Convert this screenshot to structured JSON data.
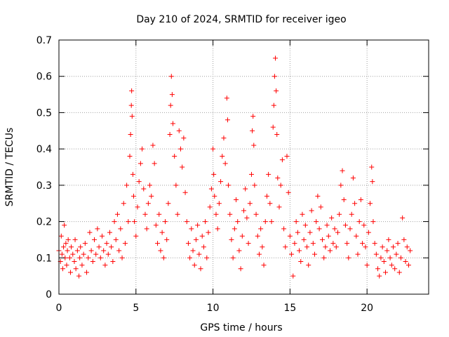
{
  "chart_data": {
    "type": "scatter",
    "title": "Day 210 of 2024, SRMTID for receiver igeo",
    "xlabel": "GPS time / hours",
    "ylabel": "SRMTID / TECUs",
    "xlim": [
      0,
      24
    ],
    "ylim": [
      0,
      0.7
    ],
    "x_ticks": [
      "0",
      "5",
      "10",
      "15",
      "20"
    ],
    "x_tick_values": [
      0,
      5,
      10,
      15,
      20
    ],
    "y_ticks": [
      "0",
      "0.1",
      "0.2",
      "0.3",
      "0.4",
      "0.5",
      "0.6",
      "0.7"
    ],
    "y_tick_values": [
      0,
      0.1,
      0.2,
      0.3,
      0.4,
      0.5,
      0.6,
      0.7
    ],
    "grid": true,
    "marker": "+",
    "marker_color": "#ff0000",
    "series": [
      {
        "name": "SRMTID",
        "points": [
          [
            0.0,
            0.12
          ],
          [
            0.1,
            0.09
          ],
          [
            0.15,
            0.16
          ],
          [
            0.2,
            0.11
          ],
          [
            0.25,
            0.07
          ],
          [
            0.3,
            0.13
          ],
          [
            0.35,
            0.19
          ],
          [
            0.4,
            0.1
          ],
          [
            0.45,
            0.14
          ],
          [
            0.5,
            0.08
          ],
          [
            0.55,
            0.12
          ],
          [
            0.6,
            0.15
          ],
          [
            0.7,
            0.1
          ],
          [
            0.75,
            0.06
          ],
          [
            0.8,
            0.13
          ],
          [
            0.9,
            0.11
          ],
          [
            1.0,
            0.09
          ],
          [
            1.05,
            0.15
          ],
          [
            1.1,
            0.07
          ],
          [
            1.2,
            0.12
          ],
          [
            1.3,
            0.05
          ],
          [
            1.35,
            0.1
          ],
          [
            1.4,
            0.13
          ],
          [
            1.5,
            0.08
          ],
          [
            1.6,
            0.11
          ],
          [
            1.7,
            0.14
          ],
          [
            1.8,
            0.06
          ],
          [
            1.9,
            0.1
          ],
          [
            2.0,
            0.17
          ],
          [
            2.1,
            0.12
          ],
          [
            2.2,
            0.09
          ],
          [
            2.3,
            0.15
          ],
          [
            2.4,
            0.11
          ],
          [
            2.5,
            0.18
          ],
          [
            2.6,
            0.13
          ],
          [
            2.7,
            0.1
          ],
          [
            2.8,
            0.16
          ],
          [
            2.9,
            0.12
          ],
          [
            3.0,
            0.08
          ],
          [
            3.1,
            0.14
          ],
          [
            3.2,
            0.11
          ],
          [
            3.3,
            0.17
          ],
          [
            3.4,
            0.13
          ],
          [
            3.5,
            0.09
          ],
          [
            3.6,
            0.2
          ],
          [
            3.7,
            0.15
          ],
          [
            3.8,
            0.22
          ],
          [
            3.9,
            0.12
          ],
          [
            4.0,
            0.18
          ],
          [
            4.1,
            0.1
          ],
          [
            4.2,
            0.25
          ],
          [
            4.3,
            0.14
          ],
          [
            4.4,
            0.3
          ],
          [
            4.5,
            0.2
          ],
          [
            4.6,
            0.38
          ],
          [
            4.65,
            0.44
          ],
          [
            4.7,
            0.52
          ],
          [
            4.72,
            0.56
          ],
          [
            4.75,
            0.49
          ],
          [
            4.8,
            0.33
          ],
          [
            4.85,
            0.27
          ],
          [
            4.9,
            0.2
          ],
          [
            5.0,
            0.16
          ],
          [
            5.1,
            0.24
          ],
          [
            5.2,
            0.31
          ],
          [
            5.3,
            0.36
          ],
          [
            5.4,
            0.4
          ],
          [
            5.5,
            0.29
          ],
          [
            5.6,
            0.22
          ],
          [
            5.7,
            0.18
          ],
          [
            5.8,
            0.25
          ],
          [
            5.9,
            0.3
          ],
          [
            6.0,
            0.27
          ],
          [
            6.1,
            0.41
          ],
          [
            6.2,
            0.36
          ],
          [
            6.3,
            0.19
          ],
          [
            6.4,
            0.14
          ],
          [
            6.5,
            0.22
          ],
          [
            6.6,
            0.12
          ],
          [
            6.7,
            0.17
          ],
          [
            6.8,
            0.1
          ],
          [
            6.9,
            0.2
          ],
          [
            7.0,
            0.15
          ],
          [
            7.1,
            0.25
          ],
          [
            7.2,
            0.44
          ],
          [
            7.25,
            0.52
          ],
          [
            7.3,
            0.6
          ],
          [
            7.35,
            0.55
          ],
          [
            7.4,
            0.47
          ],
          [
            7.5,
            0.38
          ],
          [
            7.6,
            0.3
          ],
          [
            7.7,
            0.22
          ],
          [
            7.8,
            0.45
          ],
          [
            7.9,
            0.4
          ],
          [
            8.0,
            0.35
          ],
          [
            8.1,
            0.43
          ],
          [
            8.2,
            0.28
          ],
          [
            8.3,
            0.2
          ],
          [
            8.4,
            0.14
          ],
          [
            8.5,
            0.1
          ],
          [
            8.6,
            0.18
          ],
          [
            8.7,
            0.12
          ],
          [
            8.8,
            0.08
          ],
          [
            8.9,
            0.15
          ],
          [
            9.0,
            0.19
          ],
          [
            9.1,
            0.11
          ],
          [
            9.2,
            0.07
          ],
          [
            9.3,
            0.16
          ],
          [
            9.4,
            0.13
          ],
          [
            9.5,
            0.2
          ],
          [
            9.6,
            0.1
          ],
          [
            9.7,
            0.17
          ],
          [
            9.8,
            0.24
          ],
          [
            9.9,
            0.29
          ],
          [
            10.0,
            0.4
          ],
          [
            10.05,
            0.33
          ],
          [
            10.1,
            0.27
          ],
          [
            10.2,
            0.22
          ],
          [
            10.3,
            0.18
          ],
          [
            10.4,
            0.25
          ],
          [
            10.5,
            0.31
          ],
          [
            10.6,
            0.38
          ],
          [
            10.7,
            0.43
          ],
          [
            10.8,
            0.36
          ],
          [
            10.9,
            0.54
          ],
          [
            10.95,
            0.48
          ],
          [
            11.0,
            0.3
          ],
          [
            11.1,
            0.22
          ],
          [
            11.2,
            0.15
          ],
          [
            11.3,
            0.1
          ],
          [
            11.4,
            0.18
          ],
          [
            11.5,
            0.26
          ],
          [
            11.6,
            0.2
          ],
          [
            11.7,
            0.12
          ],
          [
            11.8,
            0.07
          ],
          [
            11.9,
            0.16
          ],
          [
            12.0,
            0.23
          ],
          [
            12.1,
            0.29
          ],
          [
            12.2,
            0.21
          ],
          [
            12.3,
            0.14
          ],
          [
            12.4,
            0.25
          ],
          [
            12.5,
            0.33
          ],
          [
            12.55,
            0.45
          ],
          [
            12.6,
            0.49
          ],
          [
            12.65,
            0.41
          ],
          [
            12.7,
            0.3
          ],
          [
            12.8,
            0.22
          ],
          [
            12.9,
            0.16
          ],
          [
            13.0,
            0.11
          ],
          [
            13.1,
            0.18
          ],
          [
            13.2,
            0.13
          ],
          [
            13.3,
            0.08
          ],
          [
            13.4,
            0.2
          ],
          [
            13.5,
            0.27
          ],
          [
            13.6,
            0.33
          ],
          [
            13.7,
            0.25
          ],
          [
            13.8,
            0.2
          ],
          [
            13.9,
            0.46
          ],
          [
            13.95,
            0.52
          ],
          [
            14.0,
            0.6
          ],
          [
            14.05,
            0.65
          ],
          [
            14.1,
            0.56
          ],
          [
            14.15,
            0.44
          ],
          [
            14.2,
            0.32
          ],
          [
            14.3,
            0.24
          ],
          [
            14.4,
            0.3
          ],
          [
            14.5,
            0.37
          ],
          [
            14.6,
            0.18
          ],
          [
            14.7,
            0.13
          ],
          [
            14.8,
            0.38
          ],
          [
            14.9,
            0.28
          ],
          [
            15.0,
            0.16
          ],
          [
            15.1,
            0.11
          ],
          [
            15.2,
            0.05
          ],
          [
            15.3,
            0.14
          ],
          [
            15.4,
            0.2
          ],
          [
            15.5,
            0.17
          ],
          [
            15.6,
            0.12
          ],
          [
            15.7,
            0.09
          ],
          [
            15.8,
            0.22
          ],
          [
            15.9,
            0.15
          ],
          [
            16.0,
            0.19
          ],
          [
            16.1,
            0.13
          ],
          [
            16.2,
            0.08
          ],
          [
            16.3,
            0.17
          ],
          [
            16.4,
            0.23
          ],
          [
            16.5,
            0.14
          ],
          [
            16.6,
            0.11
          ],
          [
            16.7,
            0.2
          ],
          [
            16.8,
            0.27
          ],
          [
            16.9,
            0.18
          ],
          [
            17.0,
            0.24
          ],
          [
            17.1,
            0.15
          ],
          [
            17.2,
            0.1
          ],
          [
            17.3,
            0.13
          ],
          [
            17.4,
            0.19
          ],
          [
            17.5,
            0.16
          ],
          [
            17.6,
            0.12
          ],
          [
            17.7,
            0.21
          ],
          [
            17.8,
            0.14
          ],
          [
            17.9,
            0.18
          ],
          [
            18.0,
            0.13
          ],
          [
            18.1,
            0.17
          ],
          [
            18.2,
            0.22
          ],
          [
            18.3,
            0.3
          ],
          [
            18.4,
            0.34
          ],
          [
            18.5,
            0.26
          ],
          [
            18.6,
            0.19
          ],
          [
            18.7,
            0.14
          ],
          [
            18.8,
            0.1
          ],
          [
            18.9,
            0.18
          ],
          [
            19.0,
            0.22
          ],
          [
            19.1,
            0.32
          ],
          [
            19.2,
            0.25
          ],
          [
            19.3,
            0.16
          ],
          [
            19.4,
            0.11
          ],
          [
            19.5,
            0.2
          ],
          [
            19.6,
            0.26
          ],
          [
            19.7,
            0.14
          ],
          [
            19.8,
            0.19
          ],
          [
            19.9,
            0.13
          ],
          [
            20.0,
            0.08
          ],
          [
            20.1,
            0.17
          ],
          [
            20.2,
            0.25
          ],
          [
            20.3,
            0.35
          ],
          [
            20.35,
            0.31
          ],
          [
            20.4,
            0.2
          ],
          [
            20.5,
            0.14
          ],
          [
            20.6,
            0.11
          ],
          [
            20.7,
            0.07
          ],
          [
            20.8,
            0.05
          ],
          [
            20.9,
            0.1
          ],
          [
            21.0,
            0.13
          ],
          [
            21.1,
            0.09
          ],
          [
            21.2,
            0.06
          ],
          [
            21.3,
            0.12
          ],
          [
            21.4,
            0.15
          ],
          [
            21.5,
            0.1
          ],
          [
            21.6,
            0.08
          ],
          [
            21.7,
            0.13
          ],
          [
            21.8,
            0.07
          ],
          [
            21.9,
            0.11
          ],
          [
            22.0,
            0.14
          ],
          [
            22.1,
            0.06
          ],
          [
            22.2,
            0.1
          ],
          [
            22.3,
            0.21
          ],
          [
            22.4,
            0.15
          ],
          [
            22.5,
            0.09
          ],
          [
            22.6,
            0.13
          ],
          [
            22.7,
            0.08
          ],
          [
            22.8,
            0.12
          ]
        ]
      }
    ]
  }
}
